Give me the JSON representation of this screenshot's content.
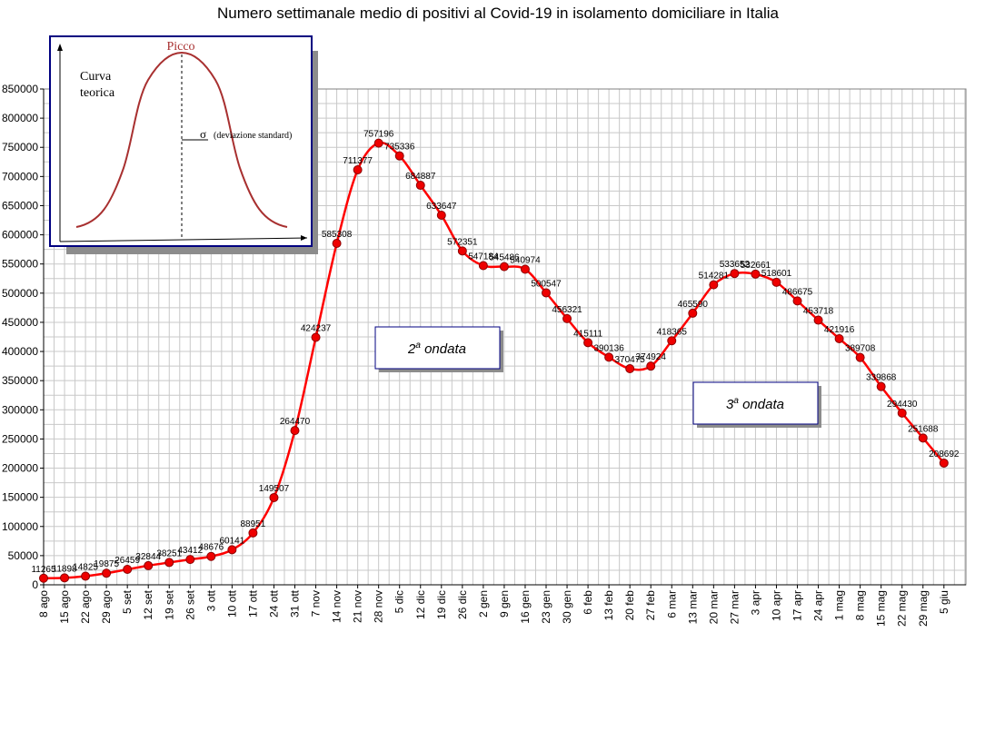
{
  "chart_data": {
    "type": "line",
    "title": "Numero settimanale medio di positivi al Covid-19  in isolamento domiciliare in Italia",
    "xlabel": "",
    "ylabel": "",
    "ylim": [
      0,
      850000
    ],
    "yticks": [
      0,
      50000,
      100000,
      150000,
      200000,
      250000,
      300000,
      350000,
      400000,
      450000,
      500000,
      550000,
      600000,
      650000,
      700000,
      750000,
      800000,
      850000
    ],
    "grid": true,
    "legend": "none",
    "colors": {
      "line": "#ff0000",
      "marker_fill": "#ee0000",
      "marker_edge": "#8b0000",
      "grid": "#c8c8c8",
      "axis": "#000000"
    },
    "categories": [
      "8 ago",
      "15 ago",
      "22 ago",
      "29 ago",
      "5 set",
      "12 set",
      "19 set",
      "26 set",
      "3 ott",
      "10 ott",
      "17 ott",
      "24 ott",
      "31 ott",
      "7 nov",
      "14 nov",
      "21 nov",
      "28 nov",
      "5 dic",
      "12 dic",
      "19 dic",
      "26 dic",
      "2 gen",
      "9 gen",
      "16 gen",
      "23 gen",
      "30 gen",
      "6 feb",
      "13 feb",
      "20 feb",
      "27 feb",
      "6 mar",
      "13 mar",
      "20 mar",
      "27 mar",
      "3 apr",
      "10 apr",
      "17 apr",
      "24 apr",
      "1 mag",
      "8 mag",
      "15 mag",
      "22 mag",
      "29 mag",
      "5 giu"
    ],
    "series": [
      {
        "values": [
          11265,
          11898,
          14825,
          19875,
          26459,
          32844,
          38251,
          43412,
          48676,
          60141,
          88951,
          149507,
          264470,
          424237,
          585308,
          711377,
          757196,
          735336,
          684887,
          633647,
          572351,
          547184,
          545486,
          540974,
          500547,
          456321,
          415111,
          390136,
          370475,
          374924,
          418365,
          465590,
          514281,
          533652,
          532661,
          518601,
          486675,
          453718,
          421916,
          389708,
          339868,
          294430,
          251688,
          208692
        ],
        "labels": [
          "11265",
          "11898",
          "14825",
          "19875",
          "26459",
          "32844",
          "38251",
          "43412",
          "48676",
          "60141",
          "88951",
          "149507",
          "264470",
          "424237",
          "585308",
          "711377",
          "757196",
          "735336",
          "684887",
          "633647",
          "572351",
          "547184",
          "545486",
          "540974",
          "500547",
          "456321",
          "415111",
          "390136",
          "370475",
          "374924",
          "418365",
          "465590",
          "514281",
          "533652",
          "532661",
          "518601",
          "486675",
          "453718",
          "421916",
          "389708",
          "339868",
          "294430",
          "251688",
          "208692"
        ]
      }
    ],
    "annotations": [
      {
        "id": "second-wave",
        "text_main": "2",
        "text_sup": "a",
        "text_rest": " ondata"
      },
      {
        "id": "third-wave",
        "text_main": "3",
        "text_sup": "a",
        "text_rest": " ondata"
      }
    ],
    "inset": {
      "peak_label": "Picco",
      "curve_label_line1": "Curva",
      "curve_label_line2": "teorica",
      "sigma_symbol": "σ",
      "sigma_label": "(deviazione standard)"
    }
  }
}
